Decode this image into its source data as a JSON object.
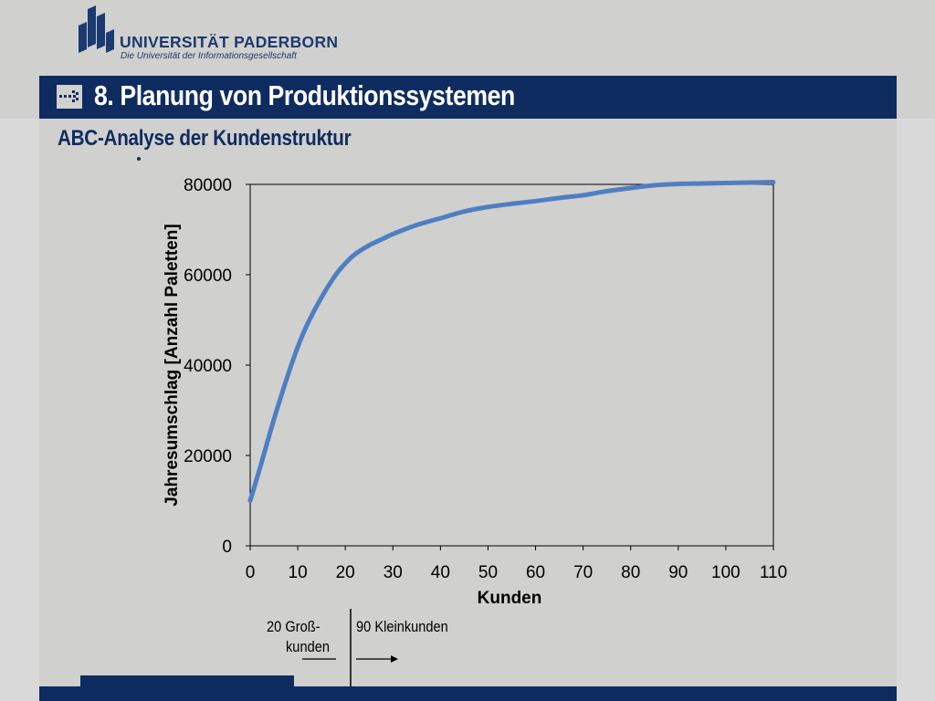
{
  "header": {
    "university_name": "UNIVERSITÄT PADERBORN",
    "university_tagline": "Die Universität der Informationsgesellschaft",
    "slide_title": "8. Planung von Produktionssystemen",
    "slide_subtitle": "ABC-Analyse der Kundenstruktur"
  },
  "colors": {
    "brand_navy": "#0f2c60",
    "line": "#4f7fc2",
    "background": "#d0d0ce"
  },
  "annotation": {
    "group_a_line1": "20 Groß-",
    "group_a_line2": "kunden",
    "group_b": "90 Kleinkunden"
  },
  "chart_data": {
    "type": "line",
    "xlabel": "Kunden",
    "ylabel": "Jahresumschlag [Anzahl Paletten]",
    "xlim": [
      0,
      110
    ],
    "ylim": [
      0,
      80000
    ],
    "x_ticks": [
      "0",
      "10",
      "20",
      "30",
      "40",
      "50",
      "60",
      "70",
      "80",
      "90",
      "100",
      "110"
    ],
    "y_ticks": [
      "0",
      "20000",
      "40000",
      "60000",
      "80000"
    ],
    "grid": false,
    "series": [
      {
        "x": [
          0,
          2,
          5,
          8,
          10,
          12,
          15,
          18,
          20,
          22,
          25,
          28,
          30,
          35,
          40,
          45,
          50,
          55,
          60,
          65,
          70,
          75,
          80,
          85,
          90,
          95,
          100,
          105,
          110
        ],
        "y": [
          10000,
          17000,
          28000,
          38000,
          44000,
          49000,
          55000,
          60000,
          62500,
          64500,
          66500,
          68000,
          69000,
          71000,
          72500,
          74000,
          75000,
          75700,
          76300,
          77000,
          77600,
          78500,
          79200,
          79800,
          80100,
          80200,
          80300,
          80400,
          80500
        ]
      }
    ]
  }
}
